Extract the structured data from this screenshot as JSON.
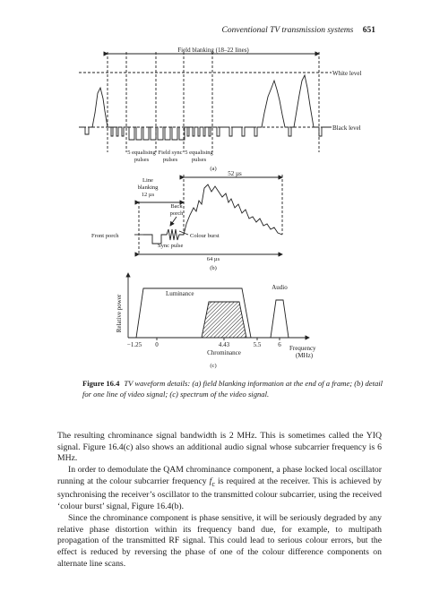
{
  "header": {
    "title": "Conventional TV transmission systems",
    "page": "651"
  },
  "figure": {
    "a": {
      "title": "Field blanking (18–22 lines)",
      "white_level": "White level",
      "black_level": "Black level",
      "eq1": [
        "5 equalising",
        "pulses"
      ],
      "sync": [
        "Field sync",
        "pulses"
      ],
      "eq2": [
        "5 equalising",
        "pulses"
      ],
      "label": "(a)"
    },
    "b": {
      "duration_52": "52 µs",
      "line_blanking": [
        "Line",
        "blanking",
        "12 µs"
      ],
      "back_porch": [
        "Back",
        "porch"
      ],
      "front_porch": "Front porch",
      "colour_burst": "Colour burst",
      "sync_pulse": "Sync pulse",
      "duration_64": "64 µs",
      "label": "(b)"
    },
    "c": {
      "ylabel": "Relative power",
      "luminance": "Luminance",
      "audio": "Audio",
      "chrominance": "Chrominance",
      "ticks": [
        "−1.25",
        "0",
        "4.43",
        "5.5",
        "6"
      ],
      "xlabel": [
        "Frequency",
        "(MHz)"
      ],
      "label": "(c)"
    }
  },
  "caption": {
    "label": "Figure 16.4",
    "text": "TV waveform details: (a) field blanking information at the end of a frame; (b) detail for one line of video signal; (c) spectrum of the video signal."
  },
  "body": {
    "p1": "The resulting chrominance signal bandwidth is 2 MHz. This is sometimes called the YIQ signal. Figure 16.4(c) also shows an additional audio signal whose subcarrier frequency is 6 MHz.",
    "p2_a": "In order to demodulate the QAM chrominance component, a phase locked local oscillator running at the colour subcarrier frequency ",
    "p2_fc": "f",
    "p2_sub": "c",
    "p2_b": " is required at the receiver. This is achieved by synchronising the receiver’s oscillator to the transmitted colour subcarrier, using the received ‘colour burst’ signal, Figure 16.4(b).",
    "p3": "Since the chrominance component is phase sensitive, it will be seriously degraded by any relative phase distortion within its frequency band due, for example, to multipath propagation of the transmitted RF signal. This could lead to serious colour errors, but the effect is reduced by reversing the phase of one of the colour difference components on alternate line scans."
  }
}
